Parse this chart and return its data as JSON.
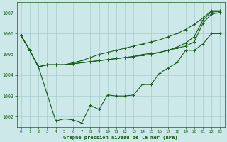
{
  "title": "Graphe pression niveau de la mer (hPa)",
  "bg_color": "#cce8e8",
  "grid_color": "#a8cccc",
  "line_color": "#1a5c1a",
  "ylim": [
    1001.5,
    1007.5
  ],
  "xlim": [
    -0.5,
    23.5
  ],
  "xticks": [
    0,
    1,
    2,
    3,
    4,
    5,
    6,
    7,
    8,
    9,
    10,
    11,
    12,
    13,
    14,
    15,
    16,
    17,
    18,
    19,
    20,
    21,
    22,
    23
  ],
  "yticks": [
    1002,
    1003,
    1004,
    1005,
    1006,
    1007
  ],
  "series": [
    [
      1005.9,
      1005.2,
      1004.4,
      1004.5,
      1004.5,
      1004.5,
      1004.55,
      1004.6,
      1004.65,
      1004.7,
      1004.75,
      1004.8,
      1004.85,
      1004.9,
      1004.95,
      1005.0,
      1005.1,
      1005.2,
      1005.3,
      1005.4,
      1005.6,
      1006.5,
      1006.95,
      1007.0
    ],
    [
      1005.9,
      1005.2,
      1004.4,
      1004.5,
      1004.5,
      1004.5,
      1004.55,
      1004.6,
      1004.65,
      1004.7,
      1004.75,
      1004.8,
      1004.85,
      1004.9,
      1005.0,
      1005.05,
      1005.1,
      1005.2,
      1005.35,
      1005.55,
      1005.85,
      1006.65,
      1007.05,
      1007.05
    ],
    [
      1005.9,
      1005.2,
      1004.4,
      1004.5,
      1004.5,
      1004.5,
      1004.6,
      1004.7,
      1004.85,
      1005.0,
      1005.1,
      1005.2,
      1005.3,
      1005.4,
      1005.5,
      1005.6,
      1005.7,
      1005.85,
      1006.0,
      1006.2,
      1006.45,
      1006.75,
      1007.1,
      1007.1
    ],
    [
      1005.9,
      1005.2,
      1004.4,
      1003.1,
      1001.8,
      1001.9,
      1001.85,
      1001.7,
      1002.55,
      1002.35,
      1003.05,
      1003.0,
      1003.0,
      1003.05,
      1003.55,
      1003.55,
      1004.1,
      1004.35,
      1004.6,
      1005.2,
      1005.2,
      1005.5,
      1006.0,
      1006.0
    ]
  ]
}
